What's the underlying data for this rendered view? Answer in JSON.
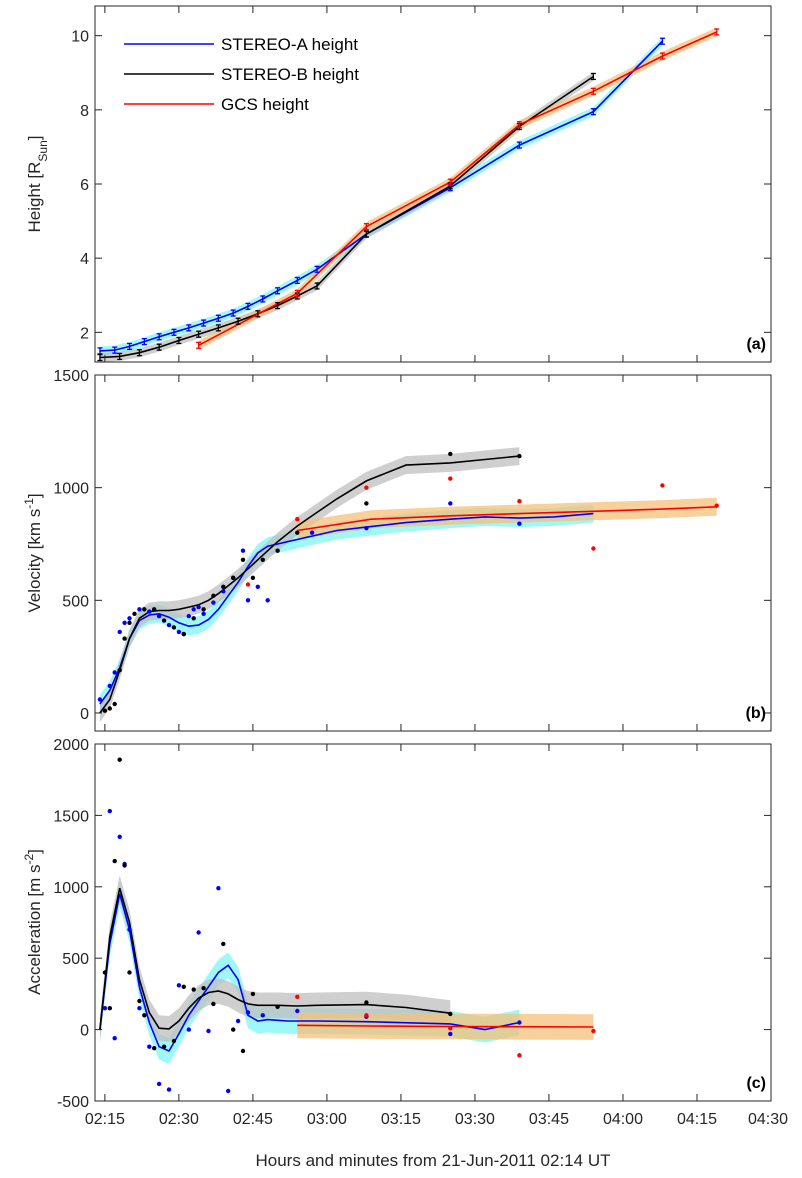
{
  "figure": {
    "xlabel": "Hours and minutes from 21-Jun-2011 02:14 UT",
    "x_ticks": [
      "02:15",
      "02:30",
      "02:45",
      "03:00",
      "03:15",
      "03:30",
      "03:45",
      "04:00",
      "04:15",
      "04:30"
    ]
  },
  "colors": {
    "stereo_a": "#0000ff",
    "stereo_b": "#000000",
    "gcs": "#ff0000",
    "band_a": "#7ff5f5",
    "band_b": "#bfbfbf",
    "band_gcs": "#f5c07a"
  },
  "chart_data": [
    {
      "type": "line",
      "panel_tag": "(a)",
      "ylabel": "Height [R",
      "ylabel_sub": "Sun",
      "ylabel_end": "]",
      "ylim": [
        1.2,
        10.8
      ],
      "xlim_minutes": [
        -1,
        136
      ],
      "y_ticks": [
        "2",
        "4",
        "6",
        "8",
        "10"
      ],
      "y_tick_values": [
        2,
        4,
        6,
        8,
        10
      ],
      "legend": [
        "STEREO-A height",
        "STEREO-B height",
        "GCS height"
      ],
      "series": [
        {
          "name": "STEREO-A height",
          "x": [
            0,
            3,
            6,
            9,
            12,
            15,
            18,
            21,
            24,
            27,
            30,
            33,
            36,
            40,
            44,
            54,
            71,
            85,
            100,
            114
          ],
          "y": [
            1.5,
            1.52,
            1.62,
            1.75,
            1.88,
            2.0,
            2.12,
            2.25,
            2.38,
            2.52,
            2.7,
            2.9,
            3.12,
            3.4,
            3.7,
            4.65,
            5.9,
            7.05,
            7.95,
            9.85
          ]
        },
        {
          "name": "STEREO-B height",
          "x": [
            0,
            4,
            8,
            12,
            16,
            20,
            24,
            28,
            32,
            36,
            40,
            44,
            54,
            71,
            85,
            100
          ],
          "y": [
            1.32,
            1.35,
            1.45,
            1.6,
            1.78,
            1.95,
            2.12,
            2.3,
            2.5,
            2.72,
            2.98,
            3.25,
            4.65,
            5.95,
            7.55,
            8.9
          ]
        },
        {
          "name": "GCS height",
          "x": [
            20,
            40,
            54,
            71,
            85,
            100,
            114,
            125
          ],
          "y": [
            1.65,
            3.05,
            4.85,
            6.05,
            7.6,
            8.5,
            9.45,
            10.1
          ]
        }
      ]
    },
    {
      "type": "line",
      "panel_tag": "(b)",
      "ylabel": "Velocity [km s",
      "ylabel_sup": "-1",
      "ylabel_end": "]",
      "ylim": [
        -80,
        1500
      ],
      "y_ticks": [
        "0",
        "500",
        "1000",
        "1500"
      ],
      "y_tick_values": [
        0,
        500,
        1000,
        1500
      ],
      "series": [
        {
          "name": "STEREO-A velocity",
          "x": [
            0,
            2,
            4,
            6,
            8,
            10,
            12,
            14,
            16,
            18,
            20,
            22,
            24,
            26,
            28,
            30,
            32,
            34,
            36,
            38,
            40,
            42,
            44,
            48,
            54,
            62,
            71,
            78,
            85,
            92,
            100
          ],
          "y": [
            40,
            100,
            200,
            330,
            410,
            435,
            440,
            425,
            400,
            385,
            390,
            415,
            460,
            520,
            580,
            650,
            710,
            740,
            750,
            760,
            770,
            780,
            790,
            810,
            825,
            845,
            860,
            870,
            865,
            870,
            885
          ]
        },
        {
          "name": "STEREO-B velocity",
          "x": [
            0,
            2,
            4,
            6,
            8,
            10,
            12,
            14,
            16,
            18,
            20,
            22,
            24,
            26,
            28,
            30,
            32,
            34,
            36,
            40,
            44,
            48,
            54,
            62,
            71,
            78,
            85
          ],
          "y": [
            0,
            60,
            190,
            330,
            420,
            450,
            455,
            455,
            460,
            470,
            480,
            500,
            530,
            565,
            600,
            640,
            680,
            720,
            760,
            830,
            890,
            950,
            1030,
            1100,
            1110,
            1125,
            1140
          ]
        },
        {
          "name": "GCS velocity",
          "x": [
            40,
            55,
            71,
            85,
            100,
            114,
            125
          ],
          "y": [
            810,
            860,
            875,
            885,
            895,
            905,
            915
          ]
        }
      ],
      "scatter": [
        {
          "name": "STEREO-A points",
          "x": [
            0,
            2,
            3,
            4,
            5,
            6,
            8,
            10,
            12,
            14,
            16,
            17,
            18,
            19,
            20,
            21,
            23,
            25,
            27,
            29,
            30,
            32,
            34,
            43,
            54,
            71,
            85
          ],
          "y": [
            60,
            120,
            180,
            360,
            400,
            420,
            460,
            450,
            430,
            390,
            360,
            350,
            430,
            460,
            470,
            440,
            490,
            540,
            600,
            720,
            500,
            560,
            500,
            800,
            820,
            930,
            840
          ]
        },
        {
          "name": "STEREO-B points",
          "x": [
            1,
            2,
            3,
            4,
            5,
            6,
            7,
            9,
            11,
            13,
            15,
            17,
            19,
            21,
            23,
            25,
            27,
            29,
            31,
            33,
            36,
            40,
            54,
            71,
            85
          ],
          "y": [
            10,
            20,
            40,
            190,
            330,
            400,
            440,
            460,
            460,
            410,
            380,
            350,
            420,
            460,
            520,
            560,
            600,
            680,
            600,
            680,
            720,
            800,
            930,
            1150,
            1140
          ]
        },
        {
          "name": "GCS points",
          "x": [
            30,
            40,
            54,
            71,
            85,
            100,
            114,
            125
          ],
          "y": [
            570,
            860,
            1000,
            1040,
            940,
            730,
            1010,
            920
          ]
        }
      ]
    },
    {
      "type": "line",
      "panel_tag": "(c)",
      "ylabel": "Acceleration [m s",
      "ylabel_sup": "-2",
      "ylabel_end": "]",
      "ylim": [
        -500,
        2000
      ],
      "y_ticks": [
        "-500",
        "0",
        "500",
        "1000",
        "1500",
        "2000"
      ],
      "y_tick_values": [
        -500,
        0,
        500,
        1000,
        1500,
        2000
      ],
      "series": [
        {
          "name": "STEREO-A acceleration",
          "x": [
            0,
            2,
            4,
            6,
            8,
            10,
            12,
            14,
            16,
            18,
            20,
            22,
            24,
            26,
            28,
            30,
            32,
            34,
            36,
            38,
            40,
            44,
            54,
            71,
            78,
            85
          ],
          "y": [
            0,
            600,
            950,
            700,
            300,
            50,
            -120,
            -150,
            -30,
            100,
            200,
            300,
            400,
            450,
            350,
            100,
            60,
            70,
            65,
            60,
            60,
            60,
            55,
            40,
            0,
            50
          ]
        },
        {
          "name": "STEREO-B acceleration",
          "x": [
            0,
            2,
            4,
            6,
            8,
            10,
            12,
            14,
            16,
            18,
            20,
            22,
            24,
            26,
            28,
            30,
            32,
            36,
            40,
            44,
            54,
            62,
            71
          ],
          "y": [
            0,
            650,
            990,
            750,
            350,
            120,
            10,
            5,
            60,
            150,
            220,
            260,
            270,
            250,
            210,
            180,
            170,
            170,
            165,
            170,
            175,
            155,
            115
          ]
        },
        {
          "name": "GCS acceleration",
          "x": [
            40,
            55,
            71,
            85,
            100
          ],
          "y": [
            30,
            25,
            22,
            20,
            18
          ]
        }
      ],
      "scatter": [
        {
          "name": "STEREO-A points",
          "x": [
            1,
            2,
            3,
            4,
            5,
            6,
            8,
            10,
            12,
            14,
            16,
            18,
            20,
            22,
            24,
            26,
            28,
            30,
            33,
            40,
            54,
            71,
            85
          ],
          "y": [
            150,
            1530,
            -60,
            1350,
            1160,
            700,
            150,
            -120,
            -380,
            -420,
            310,
            0,
            680,
            -10,
            990,
            -430,
            60,
            120,
            100,
            130,
            90,
            -30,
            50
          ]
        },
        {
          "name": "STEREO-B points",
          "x": [
            1,
            2,
            3,
            4,
            5,
            6,
            8,
            9,
            11,
            13,
            15,
            17,
            19,
            21,
            23,
            25,
            27,
            29,
            31,
            36,
            54,
            71
          ],
          "y": [
            400,
            150,
            1180,
            1890,
            1150,
            400,
            200,
            100,
            -130,
            -120,
            -80,
            300,
            280,
            290,
            180,
            600,
            0,
            -150,
            250,
            160,
            190,
            110
          ]
        },
        {
          "name": "GCS points",
          "x": [
            40,
            54,
            71,
            85,
            100
          ],
          "y": [
            230,
            100,
            10,
            -180,
            -10
          ]
        }
      ]
    }
  ]
}
